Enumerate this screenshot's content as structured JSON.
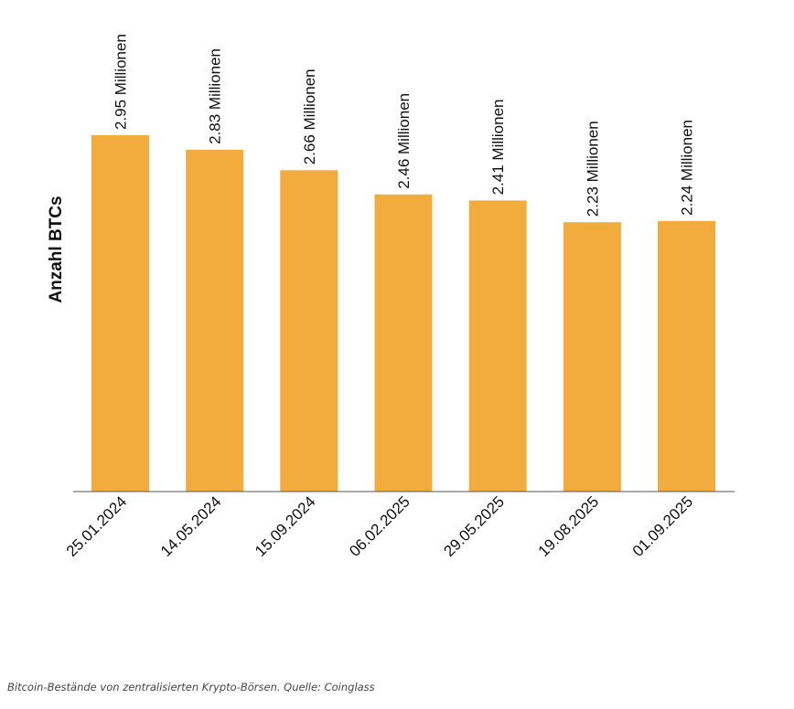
{
  "colors": {
    "bar": "#F2AC3E",
    "axis": "#555555",
    "text": "#111111",
    "caption": "#444444"
  },
  "chart_data": {
    "type": "bar",
    "title": "",
    "ylabel": "Anzahl BTCs",
    "xlabel": "",
    "categories": [
      "25.01.2024",
      "14.05.2024",
      "15.09.2024",
      "06.02.2025",
      "29.05.2025",
      "19.08.2025",
      "01.09.2025"
    ],
    "values": [
      2.95,
      2.83,
      2.66,
      2.46,
      2.41,
      2.23,
      2.24
    ],
    "data_labels": [
      "2.95 Millionen",
      "2.83 Millionen",
      "2.66 Millionen",
      "2.46 Millionen",
      "2.41 Millionen",
      "2.23 Millionen",
      "2.24 Millionen"
    ],
    "unit": "Millionen",
    "ylim": [
      0,
      2.95
    ],
    "grid": false,
    "legend": "none"
  },
  "caption": "Bitcoin-Bestände von zentralisierten Krypto-Börsen. Quelle: Coinglass"
}
